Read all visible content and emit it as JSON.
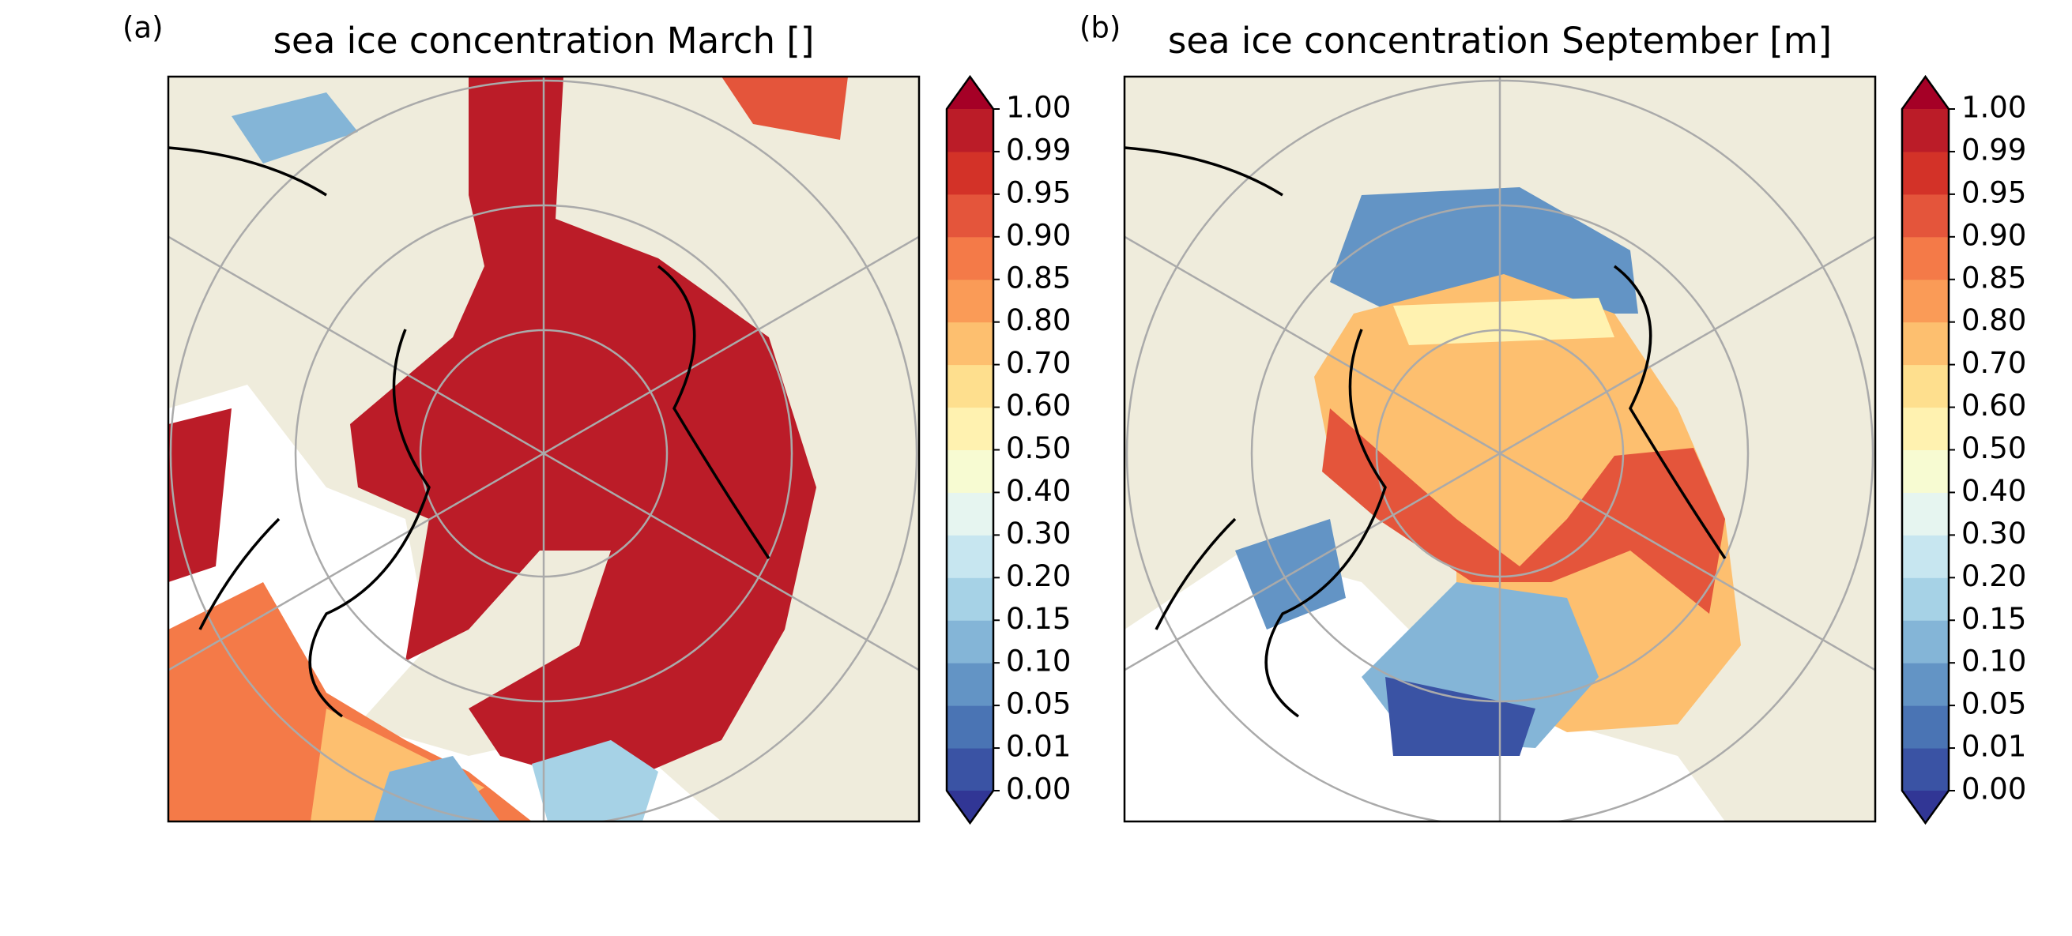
{
  "panels": [
    {
      "label": "(a)",
      "title": "sea ice concentration March []"
    },
    {
      "label": "(b)",
      "title": "sea ice concentration September [m]"
    }
  ],
  "colorbar": {
    "ticks": [
      "0.00",
      "0.01",
      "0.05",
      "0.10",
      "0.15",
      "0.20",
      "0.30",
      "0.40",
      "0.50",
      "0.60",
      "0.70",
      "0.80",
      "0.85",
      "0.90",
      "0.95",
      "0.99",
      "1.00"
    ],
    "colors": [
      "#3a53a4",
      "#4a74b4",
      "#6394c5",
      "#84b5d7",
      "#a6d2e6",
      "#c7e6f0",
      "#e6f5f0",
      "#f7fbd2",
      "#fff2b0",
      "#fedf8e",
      "#fdbf6f",
      "#fa9b57",
      "#f47a48",
      "#e4553b",
      "#d33228",
      "#bb1c28"
    ],
    "under": "#313695",
    "over": "#a50026"
  }
}
